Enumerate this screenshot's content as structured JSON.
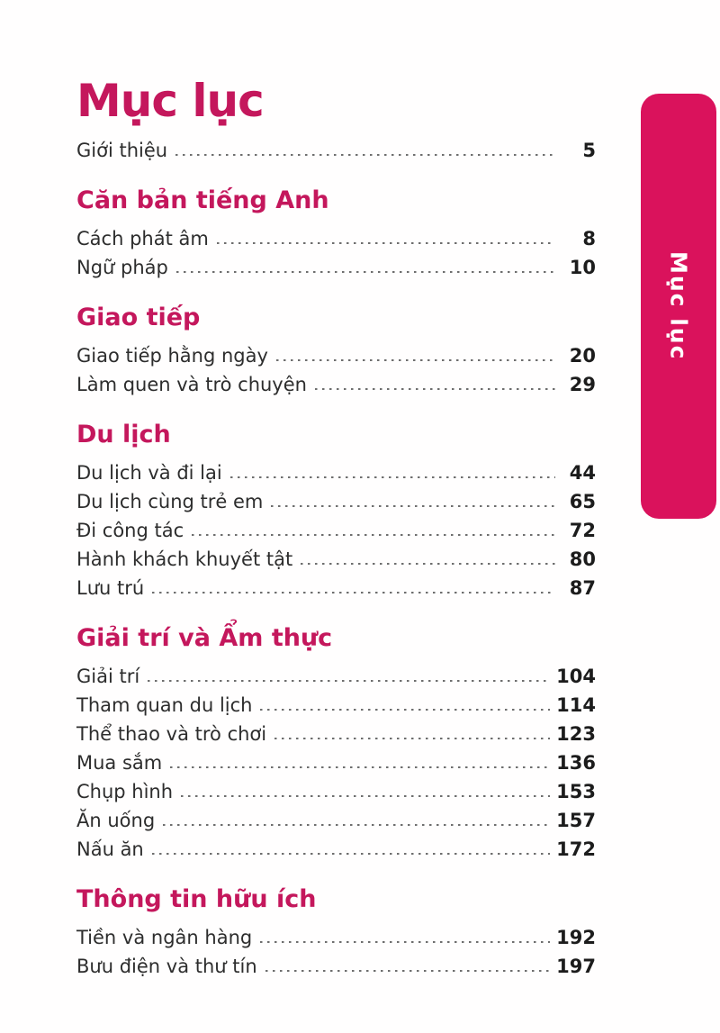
{
  "page": {
    "title": "Mục lục",
    "side_tab_label": "Mục lục",
    "colors": {
      "accent": "#c4175c",
      "tab": "#da125c",
      "body_text": "#2d2d2d",
      "page_number": "#1c1c1c",
      "leader_dots": "#6e6e6e",
      "background": "#fffefe"
    }
  },
  "toc": {
    "intro_entry": {
      "label": "Giới thiệu",
      "page": "5"
    },
    "sections": [
      {
        "heading": "Căn bản tiếng Anh",
        "entries": [
          {
            "label": "Cách phát âm",
            "page": "8"
          },
          {
            "label": "Ngữ pháp",
            "page": "10"
          }
        ]
      },
      {
        "heading": "Giao tiếp",
        "entries": [
          {
            "label": "Giao tiếp hằng ngày",
            "page": "20"
          },
          {
            "label": "Làm quen và trò chuyện",
            "page": "29"
          }
        ]
      },
      {
        "heading": "Du lịch",
        "entries": [
          {
            "label": "Du lịch và đi lại",
            "page": "44"
          },
          {
            "label": "Du lịch cùng trẻ em",
            "page": "65"
          },
          {
            "label": "Đi công tác",
            "page": "72"
          },
          {
            "label": "Hành khách khuyết tật",
            "page": "80"
          },
          {
            "label": "Lưu trú",
            "page": "87"
          }
        ]
      },
      {
        "heading": "Giải trí và Ẩm thực",
        "entries": [
          {
            "label": "Giải trí",
            "page": "104"
          },
          {
            "label": "Tham quan du lịch",
            "page": "114"
          },
          {
            "label": "Thể thao và trò chơi",
            "page": "123"
          },
          {
            "label": "Mua sắm",
            "page": "136"
          },
          {
            "label": "Chụp hình",
            "page": "153"
          },
          {
            "label": "Ăn uống",
            "page": "157"
          },
          {
            "label": "Nấu ăn",
            "page": "172"
          }
        ]
      },
      {
        "heading": "Thông tin hữu ích",
        "entries": [
          {
            "label": "Tiền và ngân hàng",
            "page": "192"
          },
          {
            "label": "Bưu điện và thư tín",
            "page": "197"
          }
        ]
      }
    ]
  }
}
